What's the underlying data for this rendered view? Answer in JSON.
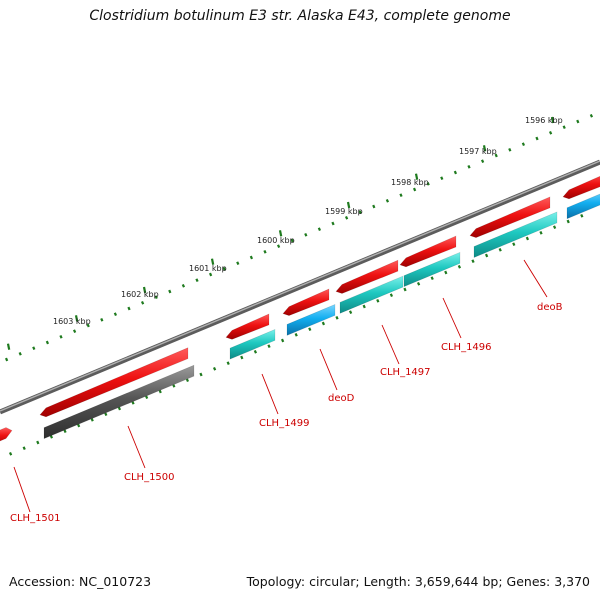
{
  "title": "Clostridium botulinum E3 str. Alaska E43, complete genome",
  "footer": {
    "accession": "Accession: NC_010723",
    "summary": "Topology: circular; Length: 3,659,644 bp; Genes: 3,370"
  },
  "colors": {
    "backbone": "#7a7a7a",
    "tick_mark": "#1e7a1e",
    "gene_forward": "#ee1111",
    "gene_reverse_cyan": "#1ec8c0",
    "gene_reverse_blue": "#12aef0",
    "gene_gray": "#555555",
    "label": "#cc0000"
  },
  "scale_labels": [
    "1596 kbp",
    "1597 kbp",
    "1598 kbp",
    "1599 kbp",
    "1600 kbp",
    "1601 kbp",
    "1602 kbp",
    "1603 kbp"
  ],
  "gene_labels": [
    "CLH_1501",
    "CLH_1500",
    "CLH_1499",
    "deoD",
    "CLH_1497",
    "CLH_1496",
    "deoB"
  ]
}
